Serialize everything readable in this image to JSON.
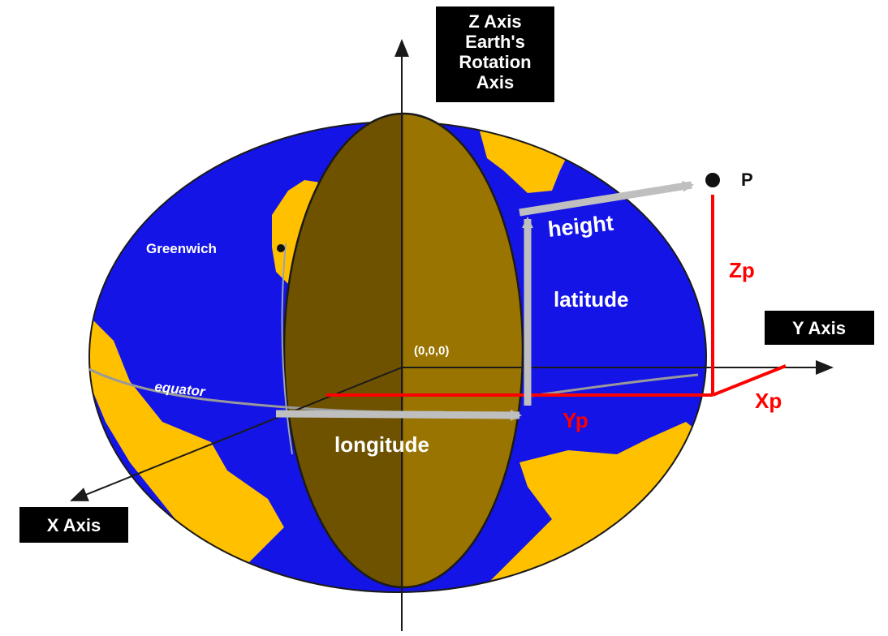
{
  "labels": {
    "z_axis_lines": [
      "Z Axis",
      "Earth's",
      "Rotation",
      "Axis"
    ],
    "y_axis": "Y Axis",
    "x_axis": "X Axis",
    "point": "P",
    "origin": "(0,0,0)",
    "greenwich": "Greenwich",
    "equator": "equator",
    "longitude": "longitude",
    "latitude": "latitude",
    "height": "height",
    "zp": "Zp",
    "yp": "Yp",
    "xp": "Xp"
  },
  "colors": {
    "ocean": "#1414e6",
    "land": "#ffc000",
    "meridian_plane_left": "#6e5200",
    "meridian_plane_right": "#9a7400",
    "axis": "#1a1a1a",
    "coordinate_lines": "#ff0000",
    "arrows": "#bfbfbf",
    "label_box": "#000000",
    "label_text": "#ffffff"
  }
}
